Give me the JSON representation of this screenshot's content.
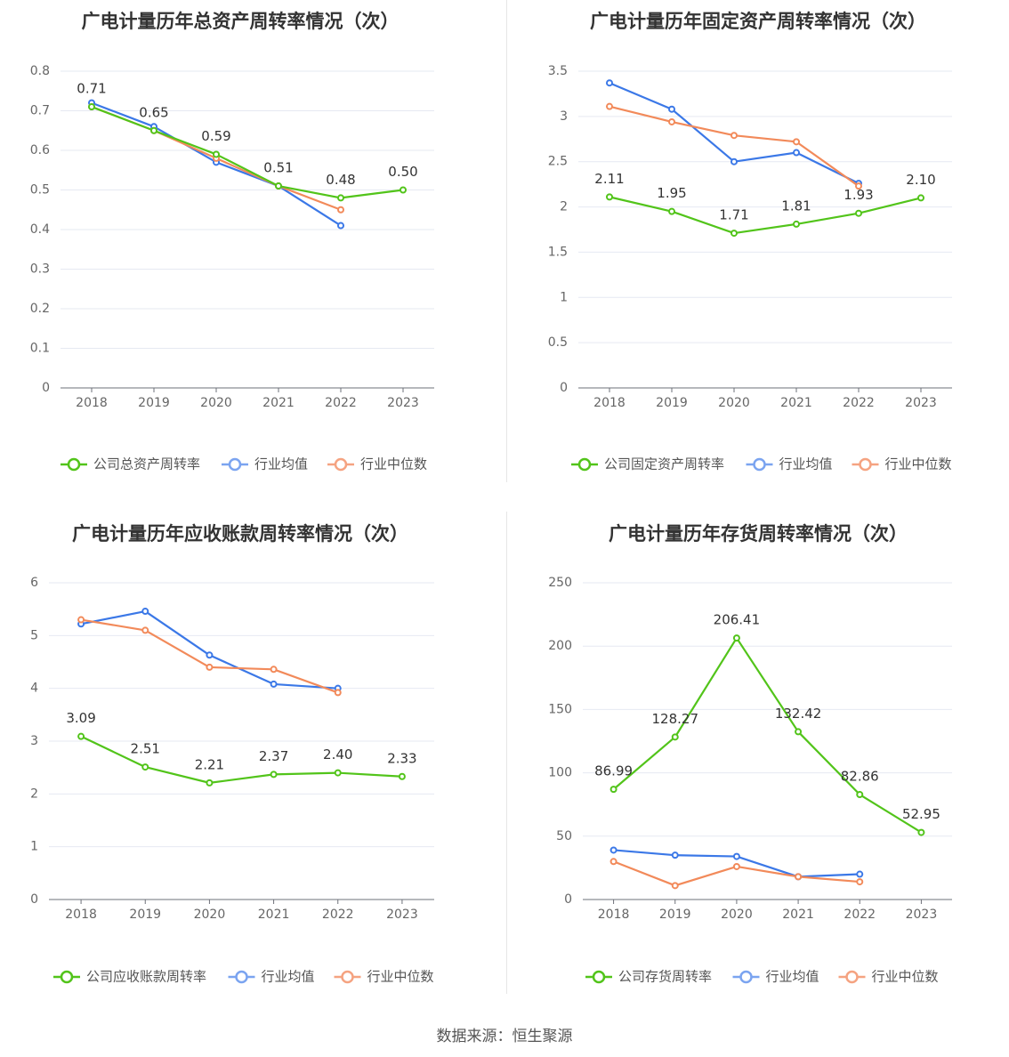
{
  "footer": "数据来源：恒生聚源",
  "colors": {
    "company": "#52c41a",
    "avg": "#3b78e7",
    "median": "#f28a5a",
    "grid": "#e6e9f2",
    "axis": "#666666",
    "text": "#333333"
  },
  "chart_data": [
    {
      "type": "line",
      "title": "广电计量历年总资产周转率情况（次）",
      "categories": [
        "2018",
        "2019",
        "2020",
        "2021",
        "2022",
        "2023"
      ],
      "ylim": [
        0,
        0.8
      ],
      "yticks": [
        "0",
        "0.1",
        "0.2",
        "0.3",
        "0.4",
        "0.5",
        "0.6",
        "0.7",
        "0.8"
      ],
      "series": [
        {
          "name": "公司总资产周转率",
          "values": [
            0.71,
            0.65,
            0.59,
            0.51,
            0.48,
            0.5
          ],
          "labels": [
            "0.71",
            "0.65",
            "0.59",
            "0.51",
            "0.48",
            "0.50"
          ]
        },
        {
          "name": "行业均值",
          "values": [
            0.72,
            0.66,
            0.57,
            0.51,
            0.41,
            null
          ]
        },
        {
          "name": "行业中位数",
          "values": [
            0.71,
            0.65,
            0.58,
            0.51,
            0.45,
            null
          ]
        }
      ]
    },
    {
      "type": "line",
      "title": "广电计量历年固定资产周转率情况（次）",
      "categories": [
        "2018",
        "2019",
        "2020",
        "2021",
        "2022",
        "2023"
      ],
      "ylim": [
        0,
        3.5
      ],
      "yticks": [
        "0",
        "0.5",
        "1",
        "1.5",
        "2",
        "2.5",
        "3",
        "3.5"
      ],
      "series": [
        {
          "name": "公司固定资产周转率",
          "values": [
            2.11,
            1.95,
            1.71,
            1.81,
            1.93,
            2.1
          ],
          "labels": [
            "2.11",
            "1.95",
            "1.71",
            "1.81",
            "1.93",
            "2.10"
          ]
        },
        {
          "name": "行业均值",
          "values": [
            3.37,
            3.08,
            2.5,
            2.6,
            2.26,
            null
          ]
        },
        {
          "name": "行业中位数",
          "values": [
            3.11,
            2.94,
            2.79,
            2.72,
            2.23,
            null
          ]
        }
      ]
    },
    {
      "type": "line",
      "title": "广电计量历年应收账款周转率情况（次）",
      "categories": [
        "2018",
        "2019",
        "2020",
        "2021",
        "2022",
        "2023"
      ],
      "ylim": [
        0,
        6
      ],
      "yticks": [
        "0",
        "1",
        "2",
        "3",
        "4",
        "5",
        "6"
      ],
      "series": [
        {
          "name": "公司应收账款周转率",
          "values": [
            3.09,
            2.51,
            2.21,
            2.37,
            2.4,
            2.33
          ],
          "labels": [
            "3.09",
            "2.51",
            "2.21",
            "2.37",
            "2.40",
            "2.33"
          ]
        },
        {
          "name": "行业均值",
          "values": [
            5.22,
            5.46,
            4.63,
            4.08,
            4.0,
            null
          ]
        },
        {
          "name": "行业中位数",
          "values": [
            5.3,
            5.1,
            4.4,
            4.36,
            3.92,
            null
          ]
        }
      ]
    },
    {
      "type": "line",
      "title": "广电计量历年存货周转率情况（次）",
      "categories": [
        "2018",
        "2019",
        "2020",
        "2021",
        "2022",
        "2023"
      ],
      "ylim": [
        0,
        250
      ],
      "yticks": [
        "0",
        "50",
        "100",
        "150",
        "200",
        "250"
      ],
      "series": [
        {
          "name": "公司存货周转率",
          "values": [
            86.99,
            128.27,
            206.41,
            132.42,
            82.86,
            52.95
          ],
          "labels": [
            "86.99",
            "128.27",
            "206.41",
            "132.42",
            "82.86",
            "52.95"
          ]
        },
        {
          "name": "行业均值",
          "values": [
            39,
            35,
            34,
            18,
            20,
            null
          ]
        },
        {
          "name": "行业中位数",
          "values": [
            30,
            11,
            26,
            18,
            14,
            null
          ]
        }
      ]
    }
  ]
}
